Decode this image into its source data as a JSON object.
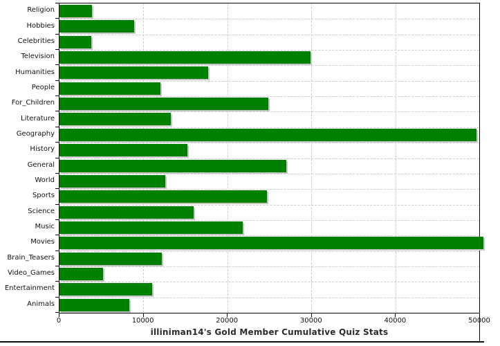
{
  "title": "illiniman14's Gold Member Cumulative Quiz Stats",
  "chart_data": {
    "type": "bar",
    "orientation": "horizontal",
    "title": "illiniman14's Gold Member Cumulative Quiz Stats",
    "xlabel": "",
    "ylabel": "",
    "categories": [
      "Religion",
      "Hobbies",
      "Celebrities",
      "Television",
      "Humanities",
      "People",
      "For_Children",
      "Literature",
      "Geography",
      "History",
      "General",
      "World",
      "Sports",
      "Science",
      "Music",
      "Movies",
      "Brain_Teasers",
      "Video_Games",
      "Entertainment",
      "Animals"
    ],
    "values": [
      3900,
      8900,
      3800,
      29900,
      17700,
      12000,
      24900,
      13300,
      49700,
      15200,
      27000,
      12600,
      24700,
      16000,
      21800,
      50500,
      12200,
      5200,
      11000,
      8300
    ],
    "xlim": [
      0,
      50000
    ],
    "x_ticks": [
      0,
      10000,
      20000,
      30000,
      40000,
      50000
    ],
    "x_tick_labels": [
      "0",
      "10000",
      "20000",
      "30000",
      "40000",
      "50000"
    ],
    "grid": true,
    "legend": false
  },
  "colors": {
    "bar": "#008000",
    "bar_shadow": "#c6c6c6",
    "grid": "#cccccc",
    "axis": "#000000",
    "text": "#111111",
    "title": "#2b2b2b",
    "background": "#ffffff"
  }
}
